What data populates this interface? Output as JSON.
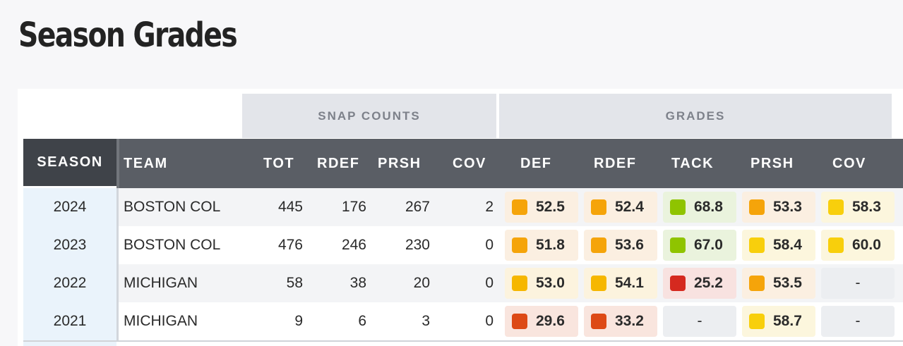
{
  "page_title": "Season Grades",
  "groups": {
    "snap_counts": "SNAP COUNTS",
    "grades": "GRADES"
  },
  "columns": {
    "season": "SEASON",
    "team": "TEAM",
    "tot": "TOT",
    "rdef": "RDEF",
    "prsh": "PRSH",
    "cov": "COV",
    "g_def": "DEF",
    "g_rdef": "RDEF",
    "g_tack": "TACK",
    "g_prsh": "PRSH",
    "g_cov": "COV"
  },
  "grade_colors": {
    "orange": "#f5a40a",
    "orange_bg": "#fbefe1",
    "amber": "#f6b700",
    "amber_bg": "#fcf3de",
    "yellow": "#f8cf0c",
    "yellow_bg": "#fcf6dd",
    "green": "#8fc400",
    "green_bg": "#eaf3dd",
    "red": "#d5291f",
    "red_bg": "#f8e2e0",
    "redorange": "#dd4a16",
    "redorange_bg": "#f9e5de",
    "empty_bg": "#eceef1"
  },
  "rows": [
    {
      "season": "2024",
      "team": "BOSTON COL",
      "tot": "445",
      "rdef": "176",
      "prsh": "267",
      "cov": "2",
      "grades": [
        {
          "value": "52.5",
          "color": "orange"
        },
        {
          "value": "52.4",
          "color": "orange"
        },
        {
          "value": "68.8",
          "color": "green"
        },
        {
          "value": "53.3",
          "color": "orange"
        },
        {
          "value": "58.3",
          "color": "yellow"
        }
      ]
    },
    {
      "season": "2023",
      "team": "BOSTON COL",
      "tot": "476",
      "rdef": "246",
      "prsh": "230",
      "cov": "0",
      "grades": [
        {
          "value": "51.8",
          "color": "orange"
        },
        {
          "value": "53.6",
          "color": "orange"
        },
        {
          "value": "67.0",
          "color": "green"
        },
        {
          "value": "58.4",
          "color": "yellow"
        },
        {
          "value": "60.0",
          "color": "yellow"
        }
      ]
    },
    {
      "season": "2022",
      "team": "MICHIGAN",
      "tot": "58",
      "rdef": "38",
      "prsh": "20",
      "cov": "0",
      "grades": [
        {
          "value": "53.0",
          "color": "amber"
        },
        {
          "value": "54.1",
          "color": "amber"
        },
        {
          "value": "25.2",
          "color": "red"
        },
        {
          "value": "53.5",
          "color": "orange"
        },
        {
          "value": "-",
          "color": "empty"
        }
      ]
    },
    {
      "season": "2021",
      "team": "MICHIGAN",
      "tot": "9",
      "rdef": "6",
      "prsh": "3",
      "cov": "0",
      "grades": [
        {
          "value": "29.6",
          "color": "redorange"
        },
        {
          "value": "33.2",
          "color": "redorange"
        },
        {
          "value": "-",
          "color": "empty"
        },
        {
          "value": "58.7",
          "color": "yellow"
        },
        {
          "value": "-",
          "color": "empty"
        }
      ]
    }
  ]
}
